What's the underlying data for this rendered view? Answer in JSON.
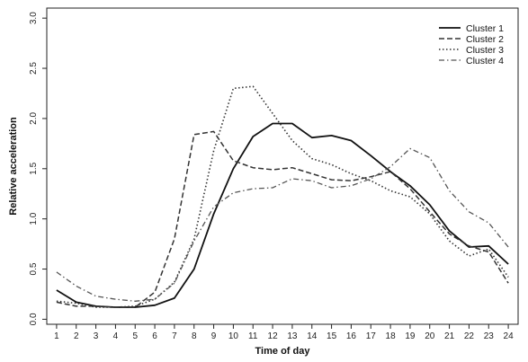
{
  "chart_data": {
    "type": "line",
    "title": "",
    "xlabel": "Time of day",
    "ylabel": "Relative acceleration",
    "x": [
      1,
      2,
      3,
      4,
      5,
      6,
      7,
      8,
      9,
      10,
      11,
      12,
      13,
      14,
      15,
      16,
      17,
      18,
      19,
      20,
      21,
      22,
      23,
      24
    ],
    "xlim": [
      0.5,
      24.5
    ],
    "ylim": [
      -0.05,
      3.1
    ],
    "yticks": [
      0.0,
      0.5,
      1.0,
      1.5,
      2.0,
      2.5,
      3.0
    ],
    "ytick_labels": [
      "0.0",
      "0.5",
      "1.0",
      "1.5",
      "2.0",
      "2.5",
      "3.0"
    ],
    "xtick_labels": [
      "1",
      "2",
      "3",
      "4",
      "5",
      "6",
      "7",
      "8",
      "9",
      "10",
      "11",
      "12",
      "13",
      "14",
      "15",
      "16",
      "17",
      "18",
      "19",
      "20",
      "21",
      "22",
      "23",
      "24"
    ],
    "grid": false,
    "legend_position": "top-right",
    "series": [
      {
        "name": "Cluster 1",
        "style": "solid",
        "color": "#111111",
        "values": [
          0.29,
          0.17,
          0.13,
          0.12,
          0.12,
          0.14,
          0.21,
          0.5,
          1.05,
          1.5,
          1.82,
          1.95,
          1.95,
          1.81,
          1.83,
          1.78,
          1.63,
          1.47,
          1.33,
          1.14,
          0.88,
          0.72,
          0.73,
          0.55
        ]
      },
      {
        "name": "Cluster 2",
        "style": "dashed",
        "color": "#333333",
        "values": [
          0.17,
          0.13,
          0.13,
          0.12,
          0.12,
          0.27,
          0.8,
          1.84,
          1.87,
          1.58,
          1.51,
          1.49,
          1.51,
          1.45,
          1.39,
          1.38,
          1.42,
          1.47,
          1.3,
          1.07,
          0.85,
          0.73,
          0.67,
          0.36
        ]
      },
      {
        "name": "Cluster 3",
        "style": "dotted",
        "color": "#333333",
        "values": [
          0.18,
          0.16,
          0.12,
          0.12,
          0.13,
          0.2,
          0.37,
          0.8,
          1.68,
          2.3,
          2.32,
          2.05,
          1.78,
          1.6,
          1.54,
          1.45,
          1.38,
          1.28,
          1.22,
          1.05,
          0.78,
          0.63,
          0.7,
          0.42
        ]
      },
      {
        "name": "Cluster 4",
        "style": "dashdot",
        "color": "#555555",
        "values": [
          0.47,
          0.33,
          0.23,
          0.2,
          0.18,
          0.2,
          0.36,
          0.78,
          1.12,
          1.26,
          1.3,
          1.31,
          1.4,
          1.38,
          1.31,
          1.33,
          1.4,
          1.52,
          1.7,
          1.61,
          1.28,
          1.07,
          0.96,
          0.72
        ]
      }
    ]
  }
}
